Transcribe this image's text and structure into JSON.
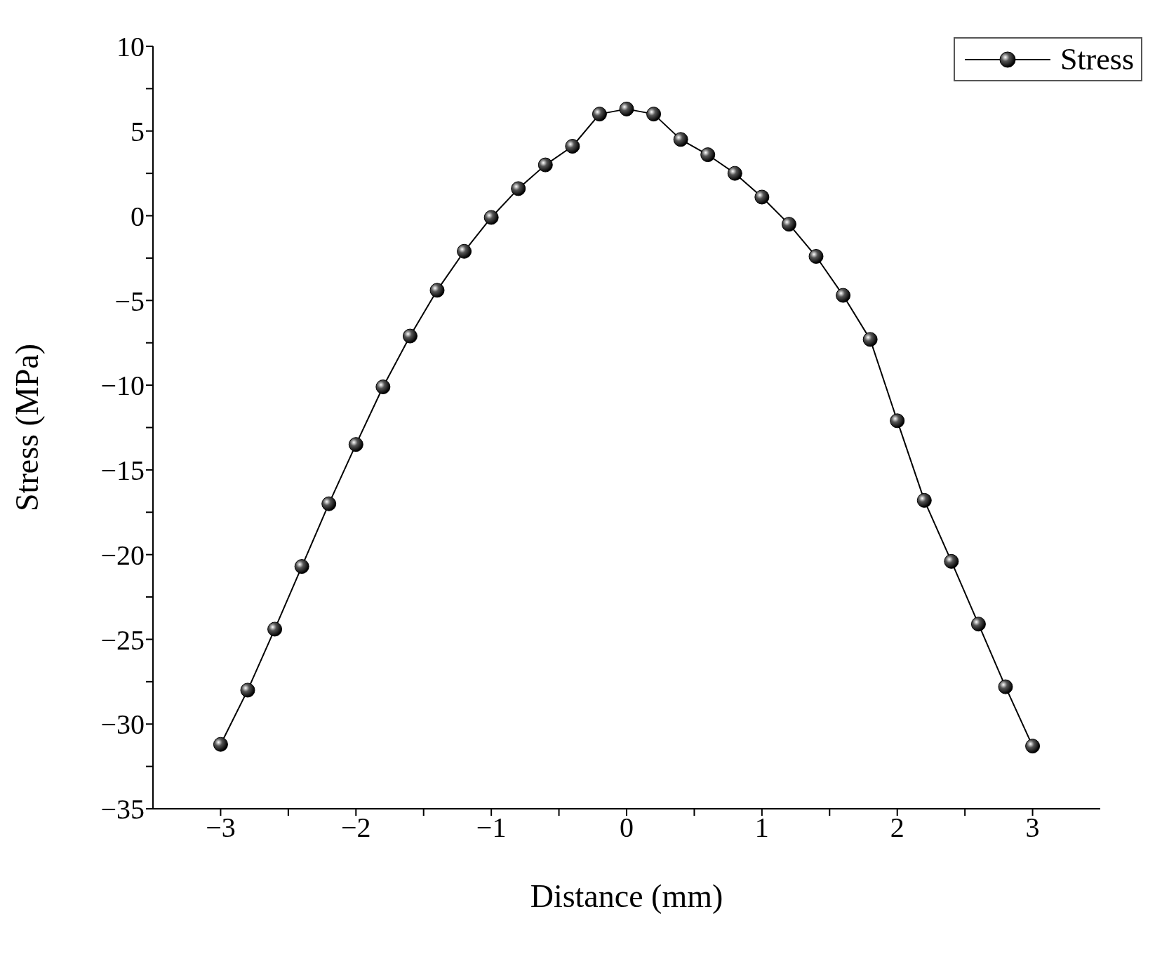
{
  "chart_data": {
    "type": "line",
    "xlabel": "Distance (mm)",
    "ylabel": "Stress (MPa)",
    "x": [
      -3,
      -2.8,
      -2.6,
      -2.4,
      -2.2,
      -2,
      -1.8,
      -1.6,
      -1.4,
      -1.2,
      -1,
      -0.8,
      -0.6,
      -0.4,
      -0.2,
      0,
      0.2,
      0.4,
      0.6,
      0.8,
      1,
      1.2,
      1.4,
      1.6,
      1.8,
      2,
      2.2,
      2.4,
      2.6,
      2.8,
      3
    ],
    "series": [
      {
        "name": "Stress",
        "color": "#000000",
        "values": [
          -31.2,
          -28.0,
          -24.4,
          -20.7,
          -17.0,
          -13.5,
          -10.1,
          -7.1,
          -4.4,
          -2.1,
          -0.1,
          1.6,
          3.0,
          4.1,
          6.0,
          6.3,
          6.0,
          4.5,
          3.6,
          2.5,
          1.1,
          -0.5,
          -2.4,
          -4.7,
          -7.3,
          -12.1,
          -16.8,
          -20.4,
          -24.1,
          -27.8,
          -31.3
        ]
      }
    ],
    "xlim": [
      -3.5,
      3.5
    ],
    "xticks": [
      {
        "value": -3,
        "label": "−3"
      },
      {
        "value": -2.5,
        "label": null
      },
      {
        "value": -2,
        "label": "−2"
      },
      {
        "value": -1.5,
        "label": null
      },
      {
        "value": -1,
        "label": "−1"
      },
      {
        "value": -0.5,
        "label": null
      },
      0,
      {
        "value": 0.5,
        "label": null
      },
      1,
      {
        "value": 1.5,
        "label": null
      },
      2,
      {
        "value": 2.5,
        "label": null
      },
      3
    ],
    "ylim": [
      -35,
      10
    ],
    "yticks": [
      {
        "value": -35,
        "label": "−35"
      },
      {
        "value": -32.5,
        "label": null
      },
      {
        "value": -30,
        "label": "−30"
      },
      {
        "value": -27.5,
        "label": null
      },
      {
        "value": -25,
        "label": "−25"
      },
      {
        "value": -22.5,
        "label": null
      },
      {
        "value": -20,
        "label": "−20"
      },
      {
        "value": -17.5,
        "label": null
      },
      {
        "value": -15,
        "label": "−15"
      },
      {
        "value": -12.5,
        "label": null
      },
      {
        "value": -10,
        "label": "−10"
      },
      {
        "value": -7.5,
        "label": null
      },
      {
        "value": -5,
        "label": "−5"
      },
      {
        "value": -2.5,
        "label": null
      },
      0,
      {
        "value": 2.5,
        "label": null
      },
      5,
      {
        "value": 7.5,
        "label": null
      },
      10
    ],
    "grid": false,
    "legend": "top right",
    "marker": "circle",
    "line_style": "solid"
  }
}
